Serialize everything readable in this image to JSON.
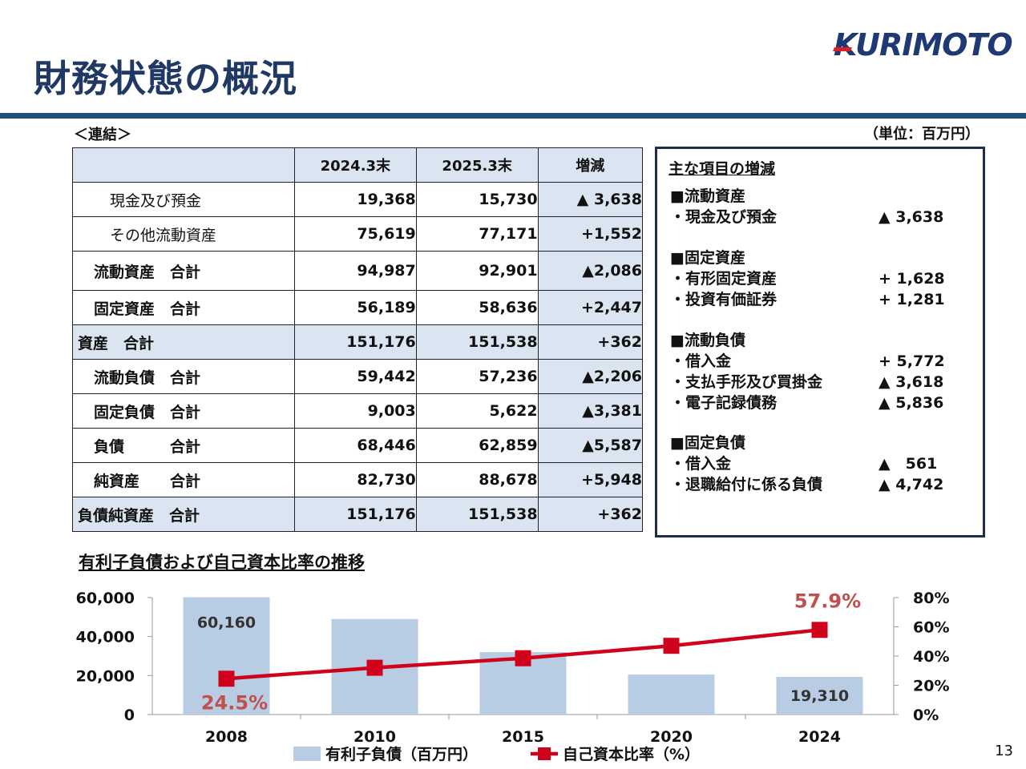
{
  "header": {
    "title": "財務状態の概況",
    "logo_text": "KURIMOTO"
  },
  "subtitle": "＜連結＞",
  "unit": "（単位：百万円）",
  "table": {
    "columns": [
      "",
      "2024.3末",
      "2025.3末",
      "増減"
    ],
    "rows": [
      {
        "label": "現金及び預金",
        "v1": "19,368",
        "v2": "15,730",
        "diff": "▲ 3,638"
      },
      {
        "label": "その他流動資産",
        "v1": "75,619",
        "v2": "77,171",
        "diff": "+1,552"
      },
      {
        "label": "流動資産　合計",
        "v1": "94,987",
        "v2": "92,901",
        "diff": "▲2,086"
      },
      {
        "label": "固定資産　合計",
        "v1": "56,189",
        "v2": "58,636",
        "diff": "+2,447"
      },
      {
        "label": "資産　合計",
        "v1": "151,176",
        "v2": "151,538",
        "diff": "+362"
      },
      {
        "label": "流動負債　合計",
        "v1": "59,442",
        "v2": "57,236",
        "diff": "▲2,206"
      },
      {
        "label": "固定負債　合計",
        "v1": "9,003",
        "v2": "5,622",
        "diff": "▲3,381"
      },
      {
        "label": "負債　　　合計",
        "v1": "68,446",
        "v2": "62,859",
        "diff": "▲5,587"
      },
      {
        "label": "純資産　　合計",
        "v1": "82,730",
        "v2": "88,678",
        "diff": "+5,948"
      },
      {
        "label": "負債純資産　合計",
        "v1": "151,176",
        "v2": "151,538",
        "diff": "+362"
      }
    ]
  },
  "changes": {
    "heading": "主な項目の増減",
    "sections": [
      {
        "title": "■流動資産",
        "items": [
          {
            "label": "・現金及び預金",
            "value": "▲ 3,638"
          }
        ]
      },
      {
        "title": "■固定資産",
        "items": [
          {
            "label": "・有形固定資産",
            "value": "+ 1,628"
          },
          {
            "label": "・投資有価証券",
            "value": "+ 1,281"
          }
        ]
      },
      {
        "title": "■流動負債",
        "items": [
          {
            "label": "・借入金",
            "value": "+ 5,772"
          },
          {
            "label": "・支払手形及び買掛金",
            "value": "▲ 3,618"
          },
          {
            "label": "・電子記録債務",
            "value": "▲ 5,836"
          }
        ]
      },
      {
        "title": "■固定負債",
        "items": [
          {
            "label": "・借入金",
            "value": "▲　561"
          },
          {
            "label": "・退職給付に係る負債",
            "value": "▲ 4,742"
          }
        ]
      }
    ]
  },
  "chart_title": "有利子負債および自己資本比率の推移",
  "chart_data": {
    "type": "bar",
    "categories": [
      "2008",
      "2010",
      "2015",
      "2020",
      "2024"
    ],
    "series": [
      {
        "name": "有利子負債（百万円）",
        "type": "bar",
        "axis": "left",
        "color": "#b8cce4",
        "values": [
          60160,
          49000,
          32000,
          20500,
          19310
        ]
      },
      {
        "name": "自己資本比率（%）",
        "type": "line",
        "axis": "right",
        "color": "#d0021b",
        "values": [
          24.5,
          32.0,
          38.5,
          47.0,
          57.9
        ]
      }
    ],
    "data_labels": {
      "bar": [
        "60,160",
        "",
        "",
        "",
        "19,310"
      ],
      "line": [
        "24.5%",
        "",
        "",
        "",
        "57.9%"
      ]
    },
    "left_axis": {
      "ticks": [
        "0",
        "20,000",
        "40,000",
        "60,000"
      ],
      "ylim": [
        0,
        60000
      ]
    },
    "right_axis": {
      "ticks": [
        "0%",
        "20%",
        "40%",
        "60%",
        "80%"
      ],
      "ylim": [
        0,
        80
      ]
    },
    "legend_position": "bottom"
  },
  "page_number": "13"
}
